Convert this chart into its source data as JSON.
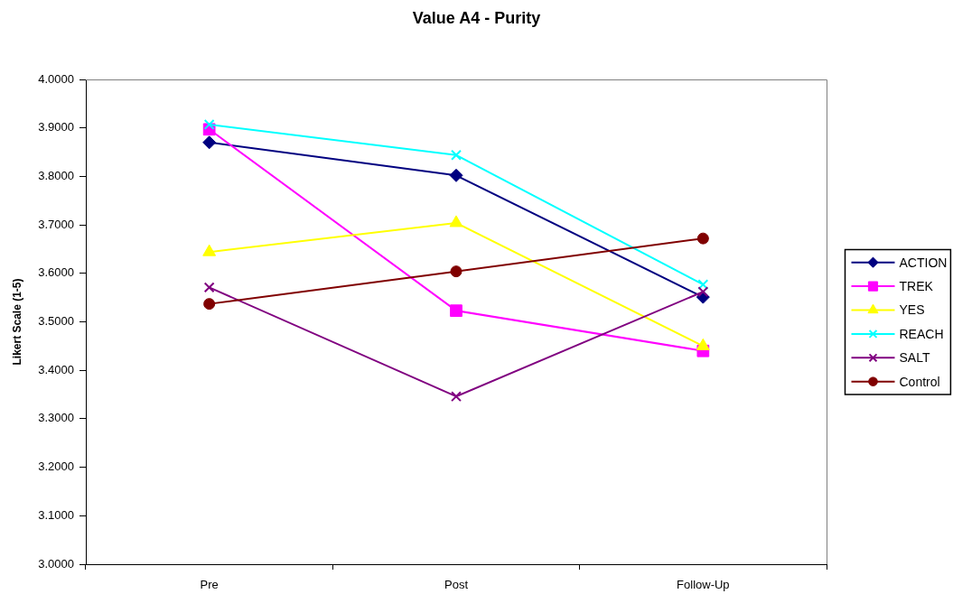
{
  "chart_data": {
    "type": "line",
    "title": "Value A4 - Purity",
    "ylabel": "Likert Scale (1-5)",
    "categories": [
      "Pre",
      "Post",
      "Follow-Up"
    ],
    "series": [
      {
        "name": "ACTION",
        "color": "#000080",
        "marker": "diamond",
        "values": [
          3.87,
          3.802,
          3.551
        ]
      },
      {
        "name": "TREK",
        "color": "#ff00ff",
        "marker": "square",
        "values": [
          3.897,
          3.523,
          3.44
        ]
      },
      {
        "name": "YES",
        "color": "#ffff00",
        "marker": "triangle",
        "values": [
          3.644,
          3.704,
          3.45
        ]
      },
      {
        "name": "REACH",
        "color": "#00ffff",
        "marker": "cross",
        "values": [
          3.907,
          3.844,
          3.577
        ]
      },
      {
        "name": "SALT",
        "color": "#800080",
        "marker": "cross",
        "values": [
          3.571,
          3.346,
          3.562
        ]
      },
      {
        "name": "Control",
        "color": "#800000",
        "marker": "circle",
        "values": [
          3.537,
          3.604,
          3.672
        ]
      }
    ],
    "ylim": [
      3,
      4
    ],
    "yticks": [
      {
        "value": 3,
        "label": "3.0000"
      },
      {
        "value": 3.1,
        "label": "3.1000"
      },
      {
        "value": 3.2,
        "label": "3.2000"
      },
      {
        "value": 3.3,
        "label": "3.3000"
      },
      {
        "value": 3.4,
        "label": "3.4000"
      },
      {
        "value": 3.5,
        "label": "3.5000"
      },
      {
        "value": 3.6,
        "label": "3.6000"
      },
      {
        "value": 3.7,
        "label": "3.7000"
      },
      {
        "value": 3.8,
        "label": "3.8000"
      },
      {
        "value": 3.9,
        "label": "3.9000"
      },
      {
        "value": 4,
        "label": "4.0000"
      }
    ],
    "legend": "right"
  }
}
